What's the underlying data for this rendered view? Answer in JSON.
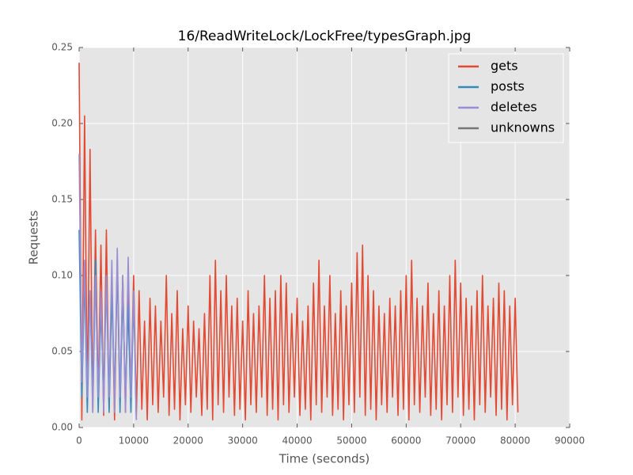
{
  "chart_data": {
    "type": "line",
    "title": "16/ReadWriteLock/LockFree/typesGraph.jpg",
    "x_label": "Time (seconds)",
    "y_label": "Requests",
    "xlim": [
      0,
      90000
    ],
    "xticks": [
      0,
      10000,
      20000,
      30000,
      40000,
      50000,
      60000,
      70000,
      80000,
      90000
    ],
    "ylim": [
      0,
      0.25
    ],
    "yticks": [
      {
        "value": 0,
        "label": "0.00"
      },
      0.05,
      {
        "value": 0.1,
        "label": "0.10"
      },
      0.15,
      {
        "value": 0.2,
        "label": "0.20"
      },
      0.25
    ],
    "grid": true,
    "legend": "upper right",
    "series": [
      {
        "name": "gets",
        "color": "#e24a33",
        "x": [
          0,
          500,
          1000,
          1500,
          2000,
          2500,
          3000,
          3500,
          4000,
          4500,
          5000,
          5500,
          6000,
          6500,
          7000,
          7500,
          8000,
          8500,
          9000,
          9500,
          10000,
          10500,
          11000,
          11500,
          12000,
          12500,
          13000,
          13500,
          14000,
          14500,
          15000,
          15500,
          16000,
          16500,
          17000,
          17500,
          18000,
          18500,
          19000,
          19500,
          20000,
          20500,
          21000,
          21500,
          22000,
          22500,
          23000,
          23500,
          24000,
          24500,
          25000,
          25500,
          26000,
          26500,
          27000,
          27500,
          28000,
          28500,
          29000,
          29500,
          30000,
          30500,
          31000,
          31500,
          32000,
          32500,
          33000,
          33500,
          34000,
          34500,
          35000,
          35500,
          36000,
          36500,
          37000,
          37500,
          38000,
          38500,
          39000,
          39500,
          40000,
          40500,
          41000,
          41500,
          42000,
          42500,
          43000,
          43500,
          44000,
          44500,
          45000,
          45500,
          46000,
          46500,
          47000,
          47500,
          48000,
          48500,
          49000,
          49500,
          50000,
          50500,
          51000,
          51500,
          52000,
          52500,
          53000,
          53500,
          54000,
          54500,
          55000,
          55500,
          56000,
          56500,
          57000,
          57500,
          58000,
          58500,
          59000,
          59500,
          60000,
          60500,
          61000,
          61500,
          62000,
          62500,
          63000,
          63500,
          64000,
          64500,
          65000,
          65500,
          66000,
          66500,
          67000,
          67500,
          68000,
          68500,
          69000,
          69500,
          70000,
          70500,
          71000,
          71500,
          72000,
          72500,
          73000,
          73500,
          74000,
          74500,
          75000,
          75500,
          76000,
          76500,
          77000,
          77500,
          78000,
          78500,
          79000,
          79500,
          80000,
          80500
        ],
        "values": [
          0.24,
          0.005,
          0.205,
          0.015,
          0.183,
          0.01,
          0.13,
          0.02,
          0.12,
          0.008,
          0.13,
          0.012,
          0.1,
          0.005,
          0.11,
          0.015,
          0.1,
          0.01,
          0.1,
          0.02,
          0.1,
          0.008,
          0.09,
          0.012,
          0.07,
          0.005,
          0.085,
          0.015,
          0.08,
          0.01,
          0.07,
          0.02,
          0.1,
          0.008,
          0.075,
          0.012,
          0.09,
          0.005,
          0.065,
          0.015,
          0.08,
          0.01,
          0.07,
          0.02,
          0.065,
          0.008,
          0.075,
          0.012,
          0.1,
          0.005,
          0.11,
          0.015,
          0.09,
          0.01,
          0.1,
          0.02,
          0.08,
          0.008,
          0.085,
          0.012,
          0.07,
          0.005,
          0.09,
          0.015,
          0.075,
          0.01,
          0.08,
          0.02,
          0.1,
          0.008,
          0.085,
          0.012,
          0.09,
          0.005,
          0.1,
          0.015,
          0.095,
          0.01,
          0.075,
          0.02,
          0.085,
          0.008,
          0.07,
          0.012,
          0.08,
          0.005,
          0.095,
          0.015,
          0.11,
          0.01,
          0.08,
          0.02,
          0.1,
          0.008,
          0.075,
          0.012,
          0.09,
          0.005,
          0.08,
          0.015,
          0.095,
          0.01,
          0.115,
          0.02,
          0.12,
          0.008,
          0.1,
          0.012,
          0.09,
          0.005,
          0.08,
          0.015,
          0.075,
          0.01,
          0.085,
          0.02,
          0.08,
          0.008,
          0.09,
          0.012,
          0.1,
          0.005,
          0.11,
          0.015,
          0.085,
          0.01,
          0.08,
          0.02,
          0.095,
          0.008,
          0.075,
          0.012,
          0.09,
          0.005,
          0.08,
          0.015,
          0.1,
          0.01,
          0.11,
          0.02,
          0.095,
          0.008,
          0.085,
          0.012,
          0.08,
          0.005,
          0.09,
          0.015,
          0.1,
          0.01,
          0.08,
          0.02,
          0.085,
          0.008,
          0.095,
          0.012,
          0.09,
          0.005,
          0.08,
          0.015,
          0.085,
          0.01
        ]
      },
      {
        "name": "posts",
        "color": "#348abd",
        "x": [
          0,
          500,
          1000,
          1500,
          2000,
          2500,
          3000,
          3500,
          4000,
          4500,
          5000,
          5500,
          6000,
          6500,
          7000,
          7500,
          8000,
          8500,
          9000,
          9500,
          10000,
          10500
        ],
        "values": [
          0.13,
          0.02,
          0.1,
          0.01,
          0.09,
          0.02,
          0.11,
          0.01,
          0.08,
          0.02,
          0.1,
          0.01,
          0.09,
          0.02,
          0.11,
          0.01,
          0.09,
          0.02,
          0.08,
          0.01,
          0.085,
          0.005
        ]
      },
      {
        "name": "deletes",
        "color": "#988ed5",
        "x": [
          0,
          500,
          1000,
          1500,
          2000,
          2500,
          3000,
          3500,
          4000,
          4500,
          5000,
          5500,
          6000,
          6500,
          7000,
          7500,
          8000,
          8500,
          9000,
          9500,
          10000,
          10500
        ],
        "values": [
          0.18,
          0.03,
          0.11,
          0.02,
          0.09,
          0.01,
          0.1,
          0.02,
          0.09,
          0.01,
          0.1,
          0.02,
          0.11,
          0.01,
          0.118,
          0.02,
          0.1,
          0.01,
          0.112,
          0.02,
          0.09,
          0.005
        ]
      },
      {
        "name": "unknowns",
        "color": "#777777",
        "x": [],
        "values": []
      }
    ]
  }
}
